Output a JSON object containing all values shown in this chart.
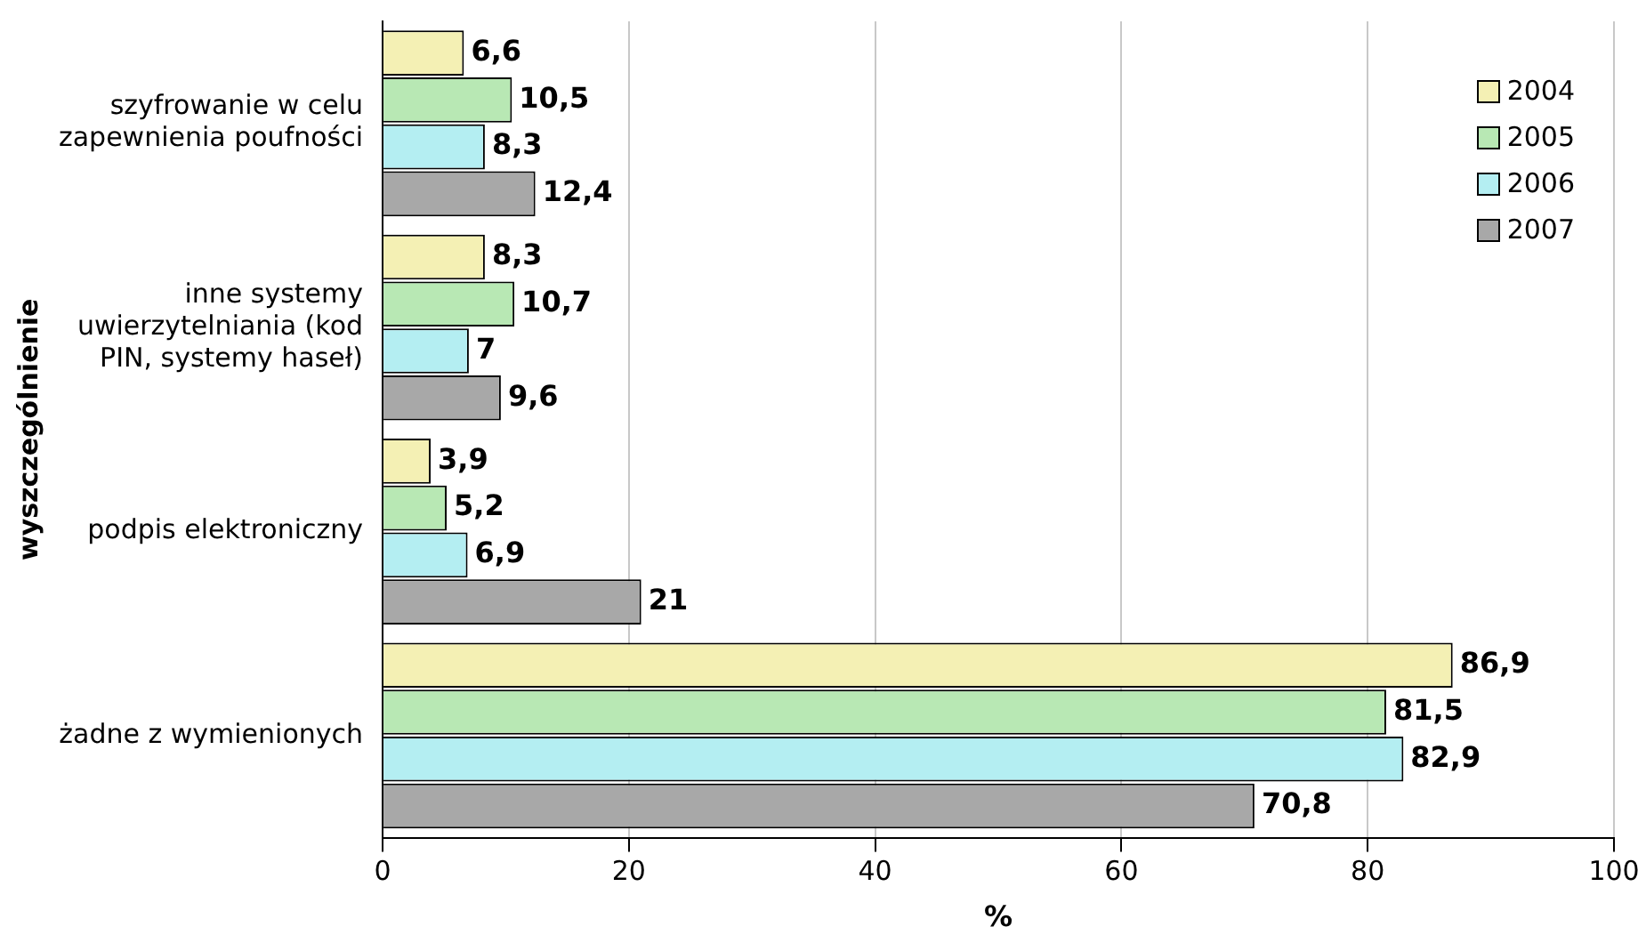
{
  "chart_data": {
    "type": "bar",
    "orientation": "horizontal",
    "xlabel": "%",
    "ylabel": "wyszczególnienie",
    "categories": [
      "szyfrowanie w celu zapewnienia poufności",
      "inne systemy uwierzytelniania (kod PIN, systemy haseł)",
      "podpis elektroniczny",
      "żadne z wymienionych"
    ],
    "series": [
      {
        "name": "2004",
        "color": "#f4f0b4",
        "values": [
          6.6,
          8.3,
          3.9,
          86.9
        ],
        "value_labels": [
          "6,6",
          "8,3",
          "3,9",
          "86,9"
        ]
      },
      {
        "name": "2005",
        "color": "#b8e8b4",
        "values": [
          10.5,
          10.7,
          5.2,
          81.5
        ],
        "value_labels": [
          "10,5",
          "10,7",
          "5,2",
          "81,5"
        ]
      },
      {
        "name": "2006",
        "color": "#b4eef2",
        "values": [
          8.3,
          7,
          6.9,
          82.9
        ],
        "value_labels": [
          "8,3",
          "7",
          "6,9",
          "82,9"
        ]
      },
      {
        "name": "2007",
        "color": "#a8a8a8",
        "values": [
          12.4,
          9.6,
          21,
          70.8
        ],
        "value_labels": [
          "12,4",
          "9,6",
          "21",
          "70,8"
        ]
      }
    ],
    "xlim": [
      0,
      100
    ],
    "xticks": [
      0,
      20,
      40,
      60,
      80,
      100
    ],
    "grid": "x",
    "legend": "top right"
  }
}
